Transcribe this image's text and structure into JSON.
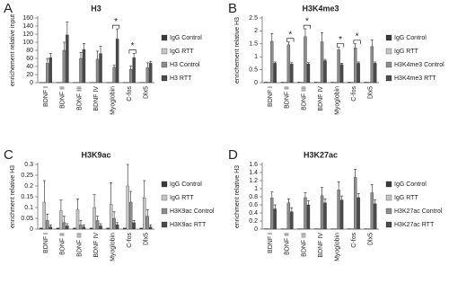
{
  "chart_data": [
    {
      "type": "bar",
      "label": "A",
      "title": "H3",
      "y_label": "enrichement relative input",
      "categories": [
        "BDNF I",
        "BDNF II",
        "BDNF III",
        "BDNF IV",
        "Myoglobin",
        "C-fos",
        "Dlx5"
      ],
      "ylim": [
        0,
        160
      ],
      "yticks": [
        0,
        20,
        40,
        60,
        80,
        100,
        120,
        140,
        160
      ],
      "series": [
        {
          "name": "IgG Control",
          "color": "#3a3a3a",
          "values": [
            0.5,
            0.5,
            0.5,
            0.5,
            0.5,
            0.5,
            0.5
          ],
          "errors": [
            0,
            0,
            0,
            0,
            0,
            0,
            0
          ]
        },
        {
          "name": "IgG RTT",
          "color": "#c4c4c4",
          "values": [
            0.5,
            0.5,
            0.5,
            0.5,
            0.5,
            0.5,
            0.5
          ],
          "errors": [
            0,
            0,
            0,
            0,
            0,
            0,
            0
          ]
        },
        {
          "name": "H3 Control",
          "color": "#8c8c8c",
          "values": [
            48,
            80,
            60,
            58,
            38,
            33,
            37
          ],
          "errors": [
            12,
            20,
            15,
            20,
            5,
            8,
            12
          ]
        },
        {
          "name": "H3 RTT",
          "color": "#4a4a4a",
          "values": [
            62,
            118,
            82,
            72,
            108,
            62,
            48
          ],
          "errors": [
            10,
            32,
            15,
            18,
            25,
            10,
            5
          ]
        }
      ],
      "significance": [
        null,
        null,
        null,
        null,
        "*",
        "*",
        null
      ]
    },
    {
      "type": "bar",
      "label": "B",
      "title": "H3K4me3",
      "y_label": "enrichement relative H3",
      "categories": [
        "BDNF I",
        "BDNF II",
        "BDNF III",
        "BDNF IV",
        "Myoglobin",
        "C-fos",
        "Dlx5"
      ],
      "ylim": [
        0,
        2.5
      ],
      "yticks": [
        0,
        0.5,
        1,
        1.5,
        2,
        2.5
      ],
      "series": [
        {
          "name": "IgG Control",
          "color": "#3a3a3a",
          "values": [
            0.02,
            0.02,
            0.02,
            0.02,
            0.02,
            0.02,
            0.02
          ],
          "errors": [
            0,
            0,
            0,
            0,
            0,
            0,
            0
          ]
        },
        {
          "name": "IgG RTT",
          "color": "#c4c4c4",
          "values": [
            0.02,
            0.02,
            0.02,
            0.02,
            0.02,
            0.02,
            0.02
          ],
          "errors": [
            0,
            0,
            0,
            0,
            0,
            0,
            0
          ]
        },
        {
          "name": "H3K4me3 Control",
          "color": "#8c8c8c",
          "values": [
            1.6,
            1.47,
            1.78,
            1.58,
            1.27,
            1.35,
            1.4
          ],
          "errors": [
            0.3,
            0.1,
            0.3,
            0.35,
            0.1,
            0.15,
            0.25
          ]
        },
        {
          "name": "H3K4me3 RTT",
          "color": "#4a4a4a",
          "values": [
            0.75,
            0.72,
            0.72,
            0.85,
            0.7,
            0.75,
            0.75
          ],
          "errors": [
            0.05,
            0.05,
            0.05,
            0.05,
            0.05,
            0.05,
            0.05
          ]
        }
      ],
      "significance": [
        null,
        "*",
        "*",
        null,
        "*",
        "*",
        null
      ]
    },
    {
      "type": "bar",
      "label": "C",
      "title": "H3K9ac",
      "y_label": "enrichment relative H3",
      "categories": [
        "BDNF I",
        "BDNF II",
        "BDNF III",
        "BDNF IV",
        "Myoglobin",
        "C-fos",
        "Dlx5"
      ],
      "ylim": [
        0,
        0.3
      ],
      "yticks": [
        0,
        0.05,
        0.1,
        0.15,
        0.2,
        0.25,
        0.3
      ],
      "series": [
        {
          "name": "IgG Control",
          "color": "#3a3a3a",
          "values": [
            0.005,
            0.005,
            0.005,
            0.005,
            0.005,
            0.005,
            0.005
          ],
          "errors": [
            0,
            0,
            0,
            0,
            0,
            0,
            0
          ]
        },
        {
          "name": "IgG RTT",
          "color": "#c4c4c4",
          "values": [
            0.125,
            0.085,
            0.09,
            0.1,
            0.115,
            0.2,
            0.145
          ],
          "errors": [
            0.1,
            0.05,
            0.05,
            0.06,
            0.1,
            0.1,
            0.08
          ]
        },
        {
          "name": "H3K9ac Control",
          "color": "#8c8c8c",
          "values": [
            0.04,
            0.03,
            0.02,
            0.04,
            0.05,
            0.125,
            0.06
          ],
          "errors": [
            0.03,
            0.03,
            0.02,
            0.02,
            0.03,
            0.05,
            0.03
          ]
        },
        {
          "name": "H3K9ac RTT",
          "color": "#4a4a4a",
          "values": [
            0.01,
            0.015,
            0.01,
            0.015,
            0.02,
            0.03,
            0.01
          ],
          "errors": [
            0.01,
            0.01,
            0.01,
            0.01,
            0.01,
            0.01,
            0.01
          ]
        }
      ]
    },
    {
      "type": "bar",
      "label": "D",
      "title": "H3K27ac",
      "y_label": "enrichment relative H3",
      "categories": [
        "BDNF I",
        "BDNF II",
        "BDNF III",
        "BDNF IV",
        "Myoglobin",
        "C-fos",
        "Dlx5"
      ],
      "ylim": [
        0,
        1.6
      ],
      "yticks": [
        0,
        0.2,
        0.4,
        0.6,
        0.8,
        1,
        1.2,
        1.4,
        1.6
      ],
      "series": [
        {
          "name": "IgG Control",
          "color": "#3a3a3a",
          "values": [
            0.01,
            0.01,
            0.01,
            0.01,
            0.01,
            0.01,
            0.01
          ],
          "errors": [
            0,
            0,
            0,
            0,
            0,
            0,
            0
          ]
        },
        {
          "name": "IgG RTT",
          "color": "#c4c4c4",
          "values": [
            0.01,
            0.01,
            0.01,
            0.01,
            0.01,
            0.01,
            0.01
          ],
          "errors": [
            0,
            0,
            0,
            0,
            0,
            0,
            0
          ]
        },
        {
          "name": "H3K27ac Control",
          "color": "#8c8c8c",
          "values": [
            0.77,
            0.65,
            0.78,
            0.83,
            0.97,
            1.28,
            0.9
          ],
          "errors": [
            0.15,
            0.1,
            0.12,
            0.2,
            0.2,
            0.2,
            0.2
          ]
        },
        {
          "name": "H3K27ac RTT",
          "color": "#4a4a4a",
          "values": [
            0.5,
            0.43,
            0.6,
            0.65,
            0.72,
            0.78,
            0.63
          ],
          "errors": [
            0.1,
            0.1,
            0.1,
            0.1,
            0.1,
            0.1,
            0.1
          ]
        }
      ]
    }
  ]
}
